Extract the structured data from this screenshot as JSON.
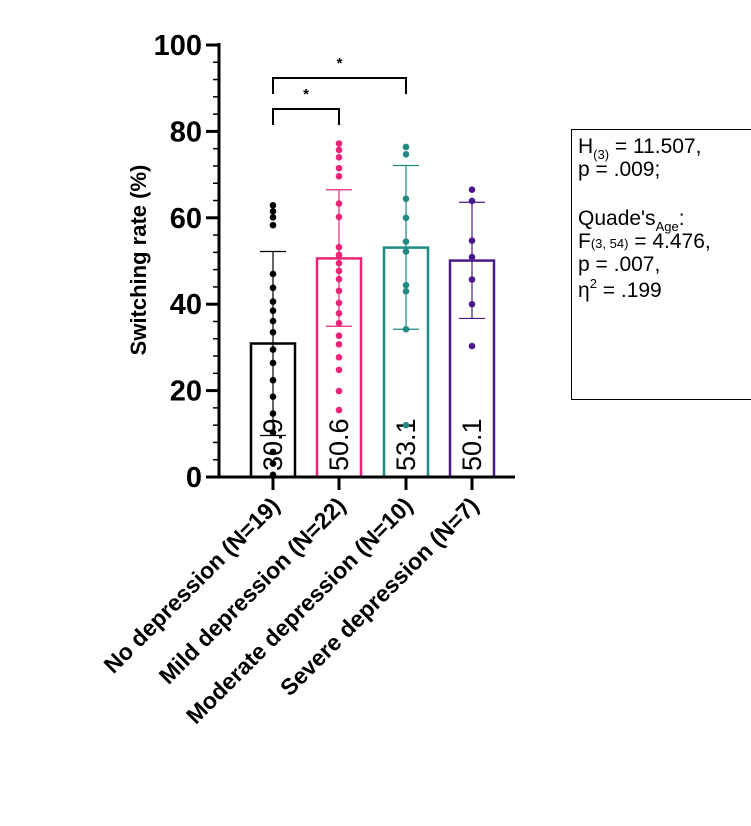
{
  "chart_data": {
    "type": "bar",
    "title": "",
    "ylabel": "Switching rate (%)",
    "ylim": [
      0,
      100
    ],
    "yticks": [
      "0",
      "20",
      "40",
      "60",
      "80",
      "100"
    ],
    "categories": [
      "No depression (N=19)",
      "Mild depression (N=22)",
      "Moderate depression (N=10)",
      "Severe depression (N=7)"
    ],
    "values": [
      30.9,
      50.6,
      53.1,
      50.1
    ],
    "value_labels": [
      "30.9",
      "50.6",
      "53.1",
      "50.1"
    ],
    "sd_upper": [
      52.2,
      66.5,
      72.1,
      63.6
    ],
    "sd_lower": [
      9.6,
      34.9,
      34.2,
      36.7
    ],
    "colors": [
      "#000000",
      "#e8247a",
      "#1f8a86",
      "#4a1a8c"
    ],
    "points": [
      [
        62.9,
        61.5,
        60.1,
        58.3,
        47.0,
        43.8,
        40.6,
        38.5,
        36.1,
        33.5,
        29.5,
        26.4,
        22.4,
        18.6,
        14.7,
        10.3,
        5.8,
        3.1,
        0.5
      ],
      [
        77.2,
        75.7,
        74.0,
        71.5,
        69.6,
        63.3,
        60.2,
        53.2,
        51.4,
        49.5,
        47.7,
        45.8,
        43.1,
        40.3,
        37.9,
        35.6,
        32.7,
        30.7,
        27.7,
        24.8,
        19.9,
        15.5
      ],
      [
        76.4,
        74.7,
        64.4,
        60.0,
        54.5,
        52.2,
        44.4,
        43.0,
        34.2,
        12.0
      ],
      [
        66.5,
        63.9,
        54.7,
        50.9,
        45.7,
        40.0,
        30.3
      ]
    ],
    "significance": [
      {
        "from": 0,
        "to": 2,
        "label": "*"
      },
      {
        "from": 0,
        "to": 1,
        "label": "*"
      }
    ],
    "annotation": {
      "h_base": "H",
      "h_sub": "(3)",
      "h_val": " = 11.507,",
      "p1": "p = .009;",
      "quade_base": "Quade's",
      "quade_sub": "Age",
      "quade_colon": ":",
      "f_base": "F",
      "f_sub": "(3, 54)",
      "f_val": " = 4.476,",
      "p2": "p = .007,",
      "eta_base": "η",
      "eta_sup": "2",
      "eta_val": " = .199"
    }
  }
}
